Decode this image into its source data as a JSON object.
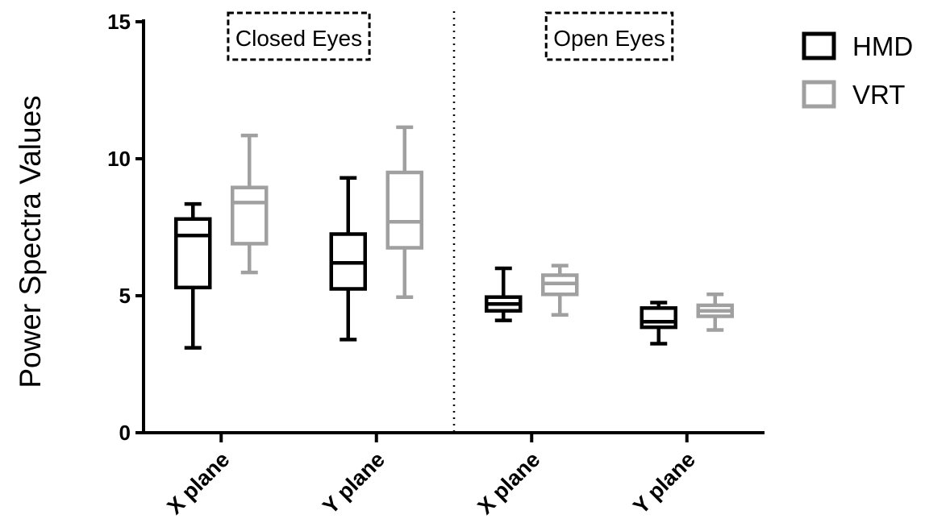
{
  "chart_data": {
    "type": "boxplot",
    "ylabel": "Power Spectra Values",
    "xlabel": "",
    "ylim": [
      0,
      15
    ],
    "yticks": [
      0,
      5,
      10,
      15
    ],
    "grid": false,
    "legend_position": "top-right",
    "groups": [
      {
        "label": "Closed Eyes",
        "categories": [
          "X plane",
          "Y plane"
        ]
      },
      {
        "label": "Open Eyes",
        "categories": [
          "X plane",
          "Y plane"
        ]
      }
    ],
    "series": [
      {
        "name": "HMD",
        "color": "#000000",
        "boxes": [
          {
            "group": "Closed Eyes",
            "category": "X plane",
            "min": 3.1,
            "q1": 5.3,
            "median": 7.2,
            "q3": 7.8,
            "max": 8.35
          },
          {
            "group": "Closed Eyes",
            "category": "Y plane",
            "min": 3.4,
            "q1": 5.25,
            "median": 6.2,
            "q3": 7.25,
            "max": 9.3
          },
          {
            "group": "Open Eyes",
            "category": "X plane",
            "min": 4.1,
            "q1": 4.45,
            "median": 4.7,
            "q3": 4.95,
            "max": 6.0
          },
          {
            "group": "Open Eyes",
            "category": "Y plane",
            "min": 3.25,
            "q1": 3.85,
            "median": 4.05,
            "q3": 4.55,
            "max": 4.75
          }
        ]
      },
      {
        "name": "VRT",
        "color": "#a0a0a0",
        "boxes": [
          {
            "group": "Closed Eyes",
            "category": "X plane",
            "min": 5.85,
            "q1": 6.9,
            "median": 8.4,
            "q3": 8.95,
            "max": 10.85
          },
          {
            "group": "Closed Eyes",
            "category": "Y plane",
            "min": 4.95,
            "q1": 6.75,
            "median": 7.7,
            "q3": 9.5,
            "max": 11.15
          },
          {
            "group": "Open Eyes",
            "category": "X plane",
            "min": 4.3,
            "q1": 5.05,
            "median": 5.45,
            "q3": 5.75,
            "max": 6.1
          },
          {
            "group": "Open Eyes",
            "category": "Y plane",
            "min": 3.75,
            "q1": 4.25,
            "median": 4.45,
            "q3": 4.65,
            "max": 5.05
          }
        ]
      }
    ]
  }
}
